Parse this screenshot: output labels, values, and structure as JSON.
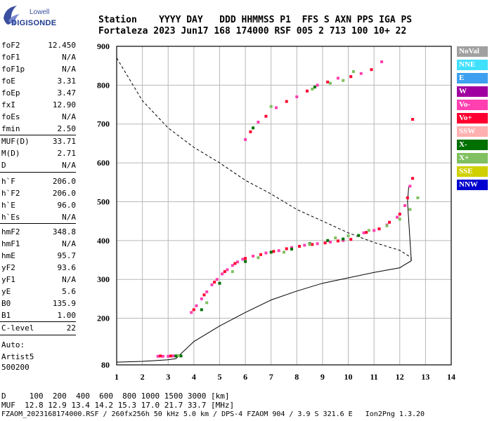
{
  "logo": {
    "line1": "Lowell",
    "line2": "DIGISONDE"
  },
  "header": {
    "line1": "Station    YYYY DAY   DDD HHMMSS P1  FFS S AXN PPS IGA PS",
    "line2": "Fortaleza 2023 Jun17 168 174000 RSF 005 2 713 100 10+ 22"
  },
  "params": {
    "group1": [
      {
        "k": "foF2",
        "v": "12.450"
      },
      {
        "k": "foF1",
        "v": "N/A"
      },
      {
        "k": "foF1p",
        "v": "N/A"
      },
      {
        "k": "foE",
        "v": "3.31"
      },
      {
        "k": "foEp",
        "v": "3.47"
      },
      {
        "k": "fxI",
        "v": "12.90"
      },
      {
        "k": "foEs",
        "v": "N/A"
      },
      {
        "k": "fmin",
        "v": "2.50"
      }
    ],
    "group2": [
      {
        "k": "MUF(D)",
        "v": "33.71"
      },
      {
        "k": "M(D)",
        "v": "2.71"
      },
      {
        "k": "D",
        "v": "N/A"
      }
    ],
    "group3": [
      {
        "k": "h`F",
        "v": "206.0"
      },
      {
        "k": "h`F2",
        "v": "206.0"
      },
      {
        "k": "h`E",
        "v": "96.0"
      },
      {
        "k": "h`Es",
        "v": "N/A"
      }
    ],
    "group4": [
      {
        "k": "hmF2",
        "v": "348.8"
      },
      {
        "k": "hmF1",
        "v": "N/A"
      },
      {
        "k": "hmE",
        "v": "95.7"
      },
      {
        "k": "yF2",
        "v": "93.6"
      },
      {
        "k": "yF1",
        "v": "N/A"
      },
      {
        "k": "yE",
        "v": "5.6"
      },
      {
        "k": "B0",
        "v": "135.9"
      },
      {
        "k": "B1",
        "v": "1.00"
      }
    ],
    "clevel": {
      "k": "C-level",
      "v": "22"
    },
    "auto": [
      "Auto:",
      "Artist5",
      "500200"
    ]
  },
  "legend": [
    {
      "label": "NoVal",
      "bg": "#a0a0a0",
      "fg": "#ffffff"
    },
    {
      "label": "NNE",
      "bg": "#40e0ff",
      "fg": "#ffffff"
    },
    {
      "label": "E",
      "bg": "#3da0f0",
      "fg": "#ffffff"
    },
    {
      "label": "W",
      "bg": "#a000a0",
      "fg": "#ffffff"
    },
    {
      "label": "Vo-",
      "bg": "#ff40b0",
      "fg": "#ffffff"
    },
    {
      "label": "Vo+",
      "bg": "#ff0030",
      "fg": "#ffffff"
    },
    {
      "label": "SSW",
      "bg": "#ffb0b0",
      "fg": "#ffffff"
    },
    {
      "label": "X-",
      "bg": "#007000",
      "fg": "#ffffff"
    },
    {
      "label": "X+",
      "bg": "#80c060",
      "fg": "#ffffff"
    },
    {
      "label": "SSE",
      "bg": "#d0d000",
      "fg": "#ffffff"
    },
    {
      "label": "NNW",
      "bg": "#0000d0",
      "fg": "#ffffff"
    }
  ],
  "footer": {
    "line1": "D     100  200  400  600  800 1000 1500 3000 [km]",
    "line2": "MUF  12.8 12.9 13.4 14.2 15.3 17.0 21.7 33.7 [MHz]",
    "line3": "FZAOM_2023168174000.RSF / 260fx256h 50 kHz 5.0 km / DPS-4 FZAOM 904 / 3.9 S 321.6 E   Ion2Png 1.3.20"
  },
  "chart_data": {
    "type": "scatter",
    "xlim": [
      1,
      14
    ],
    "ylim": [
      80,
      900
    ],
    "x_ticks": [
      1,
      2,
      3,
      4,
      5,
      6,
      7,
      8,
      9,
      10,
      11,
      12,
      13,
      14
    ],
    "y_ticks": [
      80,
      200,
      300,
      400,
      500,
      600,
      700,
      800,
      900
    ],
    "grid": true,
    "series": [
      {
        "name": "Vo-",
        "color": "#ff40b0",
        "points": [
          [
            2.6,
            102
          ],
          [
            2.8,
            102
          ],
          [
            3.0,
            102
          ],
          [
            3.2,
            103
          ],
          [
            3.9,
            215
          ],
          [
            4.1,
            232
          ],
          [
            4.3,
            250
          ],
          [
            4.5,
            268
          ],
          [
            4.7,
            286
          ],
          [
            4.9,
            300
          ],
          [
            5.1,
            314
          ],
          [
            5.3,
            325
          ],
          [
            5.5,
            336
          ],
          [
            5.7,
            345
          ],
          [
            5.9,
            352
          ],
          [
            6.3,
            360
          ],
          [
            6.8,
            368
          ],
          [
            7.3,
            374
          ],
          [
            7.8,
            382
          ],
          [
            8.3,
            388
          ],
          [
            8.8,
            392
          ],
          [
            9.3,
            396
          ],
          [
            9.8,
            400
          ],
          [
            10.6,
            420
          ],
          [
            11.0,
            426
          ],
          [
            11.5,
            440
          ],
          [
            11.9,
            460
          ],
          [
            12.2,
            490
          ],
          [
            12.4,
            540
          ],
          [
            6.0,
            660
          ],
          [
            6.5,
            705
          ],
          [
            7.2,
            742
          ],
          [
            8.0,
            770
          ],
          [
            8.8,
            800
          ],
          [
            9.6,
            818
          ],
          [
            10.5,
            830
          ],
          [
            11.3,
            860
          ]
        ]
      },
      {
        "name": "Vo+",
        "color": "#ff0030",
        "points": [
          [
            2.7,
            103
          ],
          [
            3.1,
            103
          ],
          [
            4.0,
            222
          ],
          [
            4.4,
            260
          ],
          [
            4.8,
            293
          ],
          [
            5.2,
            320
          ],
          [
            5.6,
            341
          ],
          [
            6.0,
            354
          ],
          [
            6.6,
            364
          ],
          [
            7.1,
            372
          ],
          [
            7.6,
            379
          ],
          [
            8.1,
            385
          ],
          [
            8.6,
            390
          ],
          [
            9.1,
            394
          ],
          [
            9.6,
            399
          ],
          [
            10.1,
            403
          ],
          [
            10.7,
            421
          ],
          [
            11.2,
            430
          ],
          [
            11.6,
            447
          ],
          [
            12.0,
            468
          ],
          [
            12.3,
            510
          ],
          [
            12.5,
            560
          ],
          [
            6.2,
            680
          ],
          [
            6.8,
            720
          ],
          [
            7.6,
            758
          ],
          [
            8.4,
            785
          ],
          [
            9.2,
            808
          ],
          [
            10.1,
            822
          ],
          [
            10.9,
            840
          ],
          [
            12.5,
            712
          ]
        ]
      },
      {
        "name": "X-",
        "color": "#007000",
        "points": [
          [
            3.3,
            103
          ],
          [
            3.5,
            103
          ],
          [
            4.3,
            222
          ],
          [
            5.0,
            290
          ],
          [
            6.0,
            346
          ],
          [
            7.0,
            370
          ],
          [
            7.8,
            378
          ],
          [
            8.5,
            392
          ],
          [
            9.2,
            400
          ],
          [
            9.8,
            404
          ],
          [
            10.4,
            413
          ],
          [
            6.3,
            690
          ],
          [
            8.7,
            795
          ]
        ]
      },
      {
        "name": "X+",
        "color": "#80c060",
        "points": [
          [
            3.4,
            104
          ],
          [
            4.5,
            240
          ],
          [
            5.5,
            320
          ],
          [
            6.5,
            356
          ],
          [
            7.5,
            370
          ],
          [
            8.5,
            390
          ],
          [
            9.5,
            407
          ],
          [
            10.0,
            412
          ],
          [
            10.8,
            426
          ],
          [
            11.5,
            438
          ],
          [
            12.0,
            455
          ],
          [
            12.4,
            480
          ],
          [
            12.7,
            510
          ],
          [
            7.0,
            745
          ],
          [
            8.6,
            790
          ],
          [
            9.3,
            805
          ],
          [
            9.8,
            812
          ],
          [
            10.2,
            835
          ]
        ]
      }
    ],
    "profile_solid": [
      [
        1.0,
        87
      ],
      [
        2.0,
        89
      ],
      [
        3.0,
        93
      ],
      [
        3.3,
        96
      ],
      [
        4.0,
        140
      ],
      [
        5.0,
        180
      ],
      [
        6.0,
        215
      ],
      [
        7.0,
        247
      ],
      [
        8.0,
        270
      ],
      [
        9.0,
        290
      ],
      [
        10.0,
        304
      ],
      [
        11.0,
        318
      ],
      [
        12.0,
        330
      ],
      [
        12.45,
        348
      ],
      [
        12.3,
        500
      ],
      [
        12.35,
        540
      ]
    ],
    "profile_dashed": [
      [
        1.0,
        870
      ],
      [
        2.0,
        760
      ],
      [
        3.0,
        690
      ],
      [
        4.0,
        640
      ],
      [
        5.0,
        600
      ],
      [
        6.0,
        555
      ],
      [
        7.0,
        520
      ],
      [
        8.0,
        480
      ],
      [
        9.0,
        450
      ],
      [
        10.0,
        420
      ],
      [
        11.0,
        395
      ],
      [
        12.0,
        375
      ],
      [
        12.45,
        356
      ],
      [
        12.4,
        345
      ]
    ]
  }
}
